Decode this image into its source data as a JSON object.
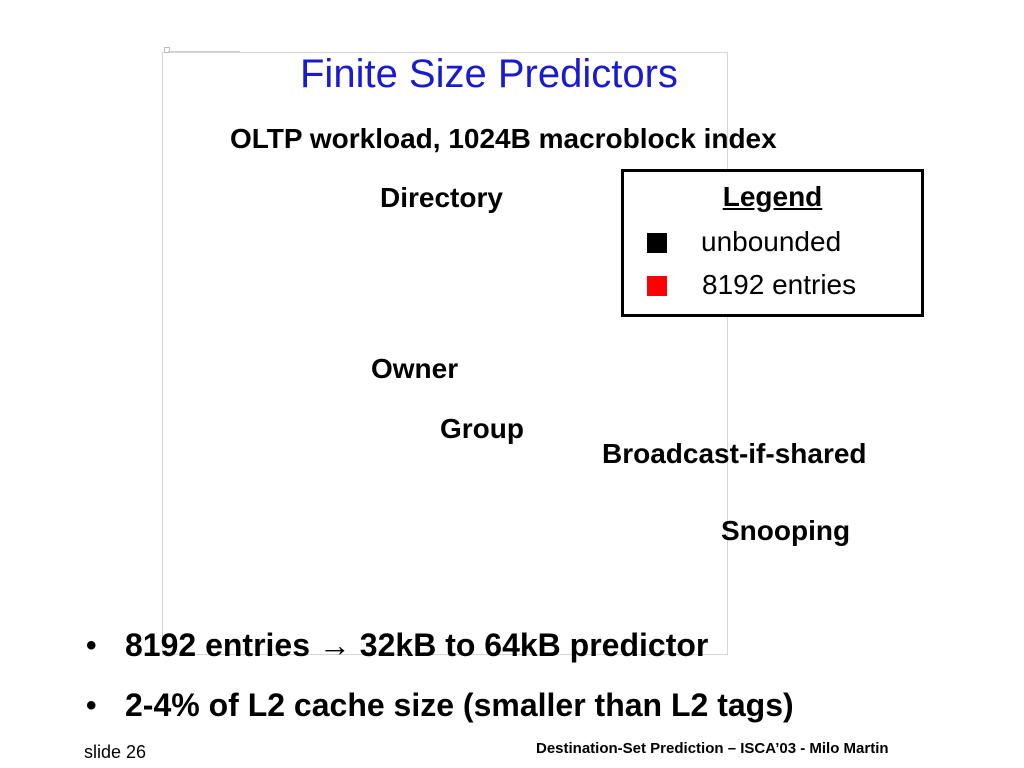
{
  "slide": {
    "title": "Finite Size Predictors",
    "subtitle": "OLTP workload, 1024B macroblock index"
  },
  "plot_labels": {
    "directory": "Directory",
    "owner": "Owner",
    "group": "Group",
    "broadcast_if_shared": "Broadcast-if-shared",
    "snooping": "Snooping"
  },
  "legend": {
    "title": "Legend",
    "items": [
      {
        "label": "unbounded",
        "color": "#000000"
      },
      {
        "label": "8192 entries",
        "color": "#ff0000"
      }
    ]
  },
  "bullets": {
    "marker": "•",
    "items": [
      {
        "text": "8192 entries → 32kB to 64kB predictor"
      },
      {
        "text": "2-4% of L2 cache size (smaller than L2 tags)"
      }
    ]
  },
  "footer": {
    "left": "slide 26",
    "right": "Destination-Set Prediction – ISCA’03 - Milo Martin"
  }
}
